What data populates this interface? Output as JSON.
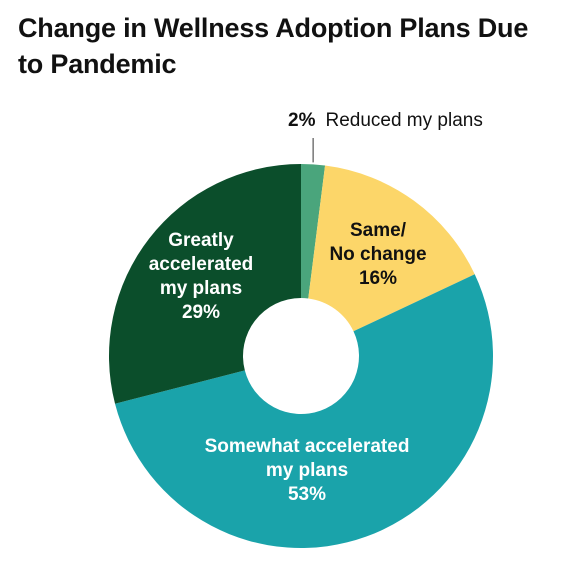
{
  "chart_data": {
    "type": "pie",
    "variant": "donut",
    "title": "Change in Wellness Adoption Plans Due to Pandemic",
    "slices": [
      {
        "label": "Reduced my plans",
        "label_lines": [
          "Reduced my plans"
        ],
        "value": 2,
        "value_label": "2%",
        "color": "#4aa57c",
        "text_color": "#111111"
      },
      {
        "label": "Same/ No change",
        "label_lines": [
          "Same/",
          "No change"
        ],
        "value": 16,
        "value_label": "16%",
        "color": "#fcd669",
        "text_color": "#111111"
      },
      {
        "label": "Somewhat accelerated my plans",
        "label_lines": [
          "Somewhat accelerated",
          "my plans"
        ],
        "value": 53,
        "value_label": "53%",
        "color": "#1aa3aa",
        "text_color": "#ffffff"
      },
      {
        "label": "Greatly accelerated my plans",
        "label_lines": [
          "Greatly",
          "accelerated",
          "my plans"
        ],
        "value": 29,
        "value_label": "29%",
        "color": "#0b4e2b",
        "text_color": "#ffffff"
      }
    ]
  }
}
